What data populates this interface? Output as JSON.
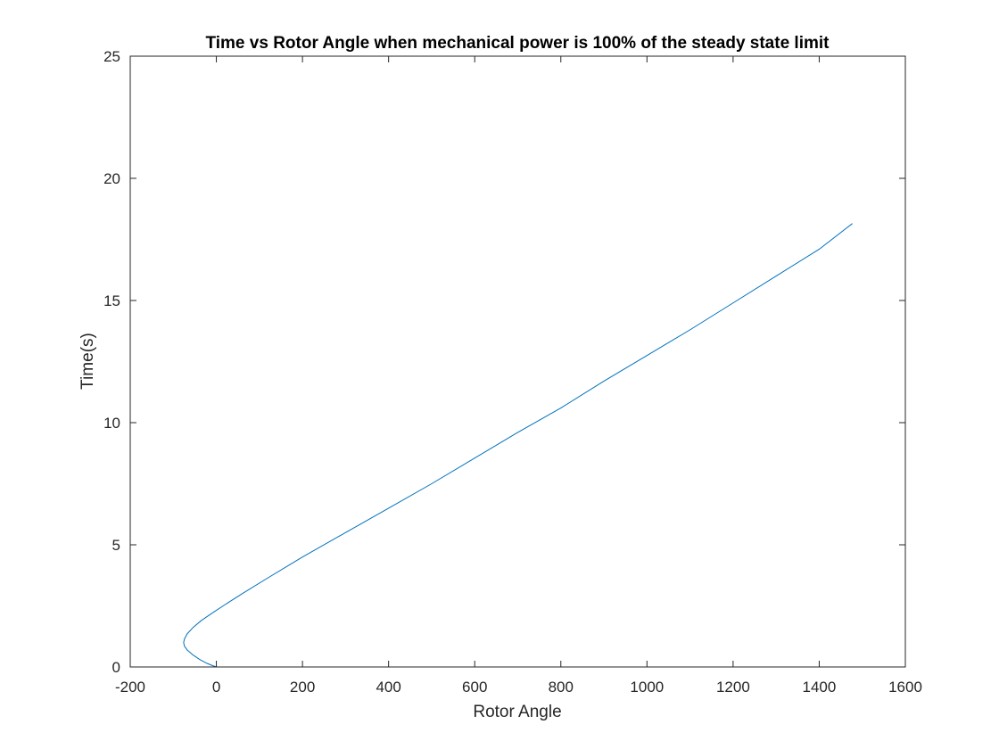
{
  "chart_data": {
    "type": "line",
    "title": "Time vs Rotor Angle when mechanical power is 100% of the steady state limit",
    "xlabel": "Rotor Angle",
    "ylabel": "Time(s)",
    "xlim": [
      -200,
      1600
    ],
    "ylim": [
      0,
      25
    ],
    "xticks": [
      "-200",
      "0",
      "200",
      "400",
      "600",
      "800",
      "1000",
      "1200",
      "1400",
      "1600"
    ],
    "yticks": [
      "0",
      "5",
      "10",
      "15",
      "20",
      "25"
    ],
    "grid": false,
    "series": [
      {
        "color": "#0072BD",
        "points": [
          [
            0,
            0
          ],
          [
            -8,
            0.05
          ],
          [
            -22,
            0.15
          ],
          [
            -38,
            0.3
          ],
          [
            -55,
            0.5
          ],
          [
            -68,
            0.7
          ],
          [
            -74,
            0.85
          ],
          [
            -76,
            1.0
          ],
          [
            -74,
            1.15
          ],
          [
            -68,
            1.35
          ],
          [
            -55,
            1.6
          ],
          [
            -35,
            1.9
          ],
          [
            -10,
            2.2
          ],
          [
            20,
            2.55
          ],
          [
            60,
            3.0
          ],
          [
            120,
            3.65
          ],
          [
            200,
            4.5
          ],
          [
            300,
            5.5
          ],
          [
            400,
            6.5
          ],
          [
            500,
            7.5
          ],
          [
            600,
            8.55
          ],
          [
            700,
            9.6
          ],
          [
            800,
            10.6
          ],
          [
            900,
            11.7
          ],
          [
            1000,
            12.75
          ],
          [
            1100,
            13.8
          ],
          [
            1200,
            14.9
          ],
          [
            1300,
            16.0
          ],
          [
            1400,
            17.1
          ],
          [
            1477,
            18.15
          ]
        ]
      }
    ]
  }
}
